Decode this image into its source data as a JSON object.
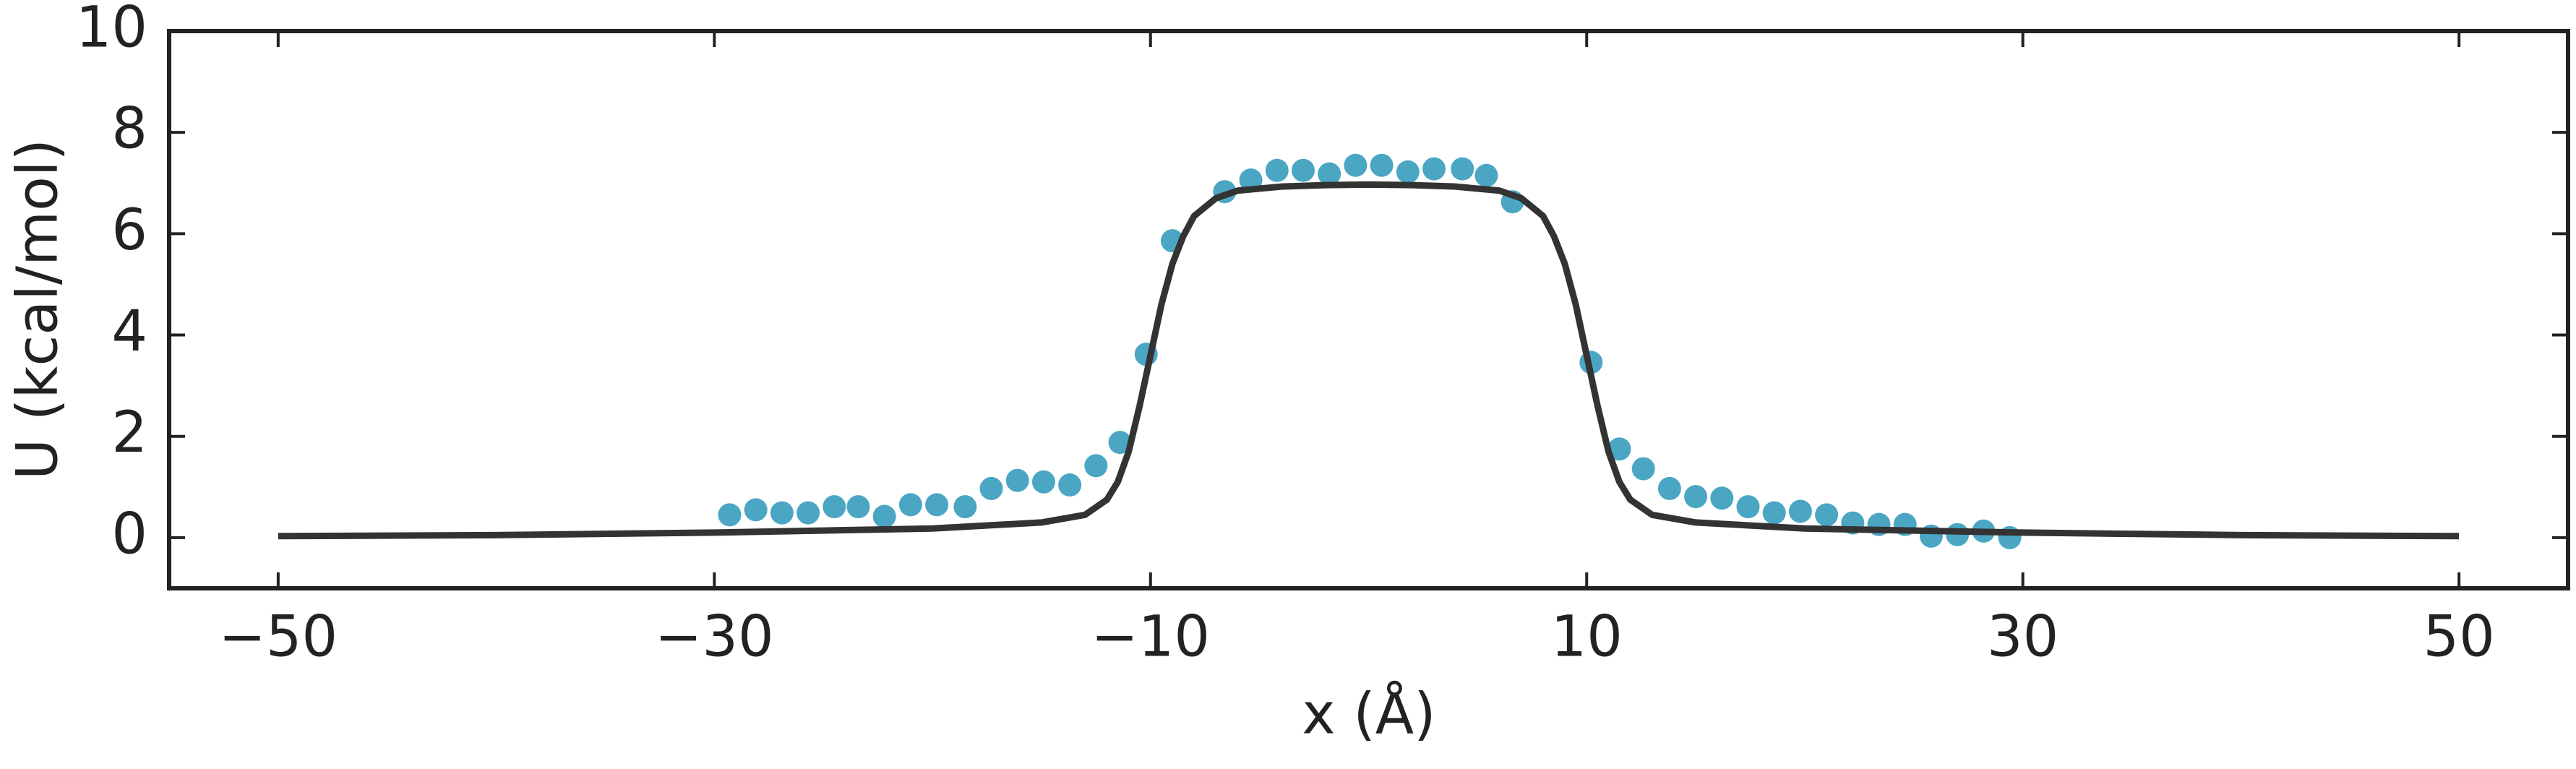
{
  "chart_data": {
    "type": "scatter",
    "xlabel": "x (Å)",
    "ylabel": "U (kcal/mol)",
    "xlim": [
      -55,
      55
    ],
    "ylim": [
      -1,
      10
    ],
    "xticks": [
      {
        "value": -50,
        "label": "−50"
      },
      {
        "value": -30,
        "label": "−30"
      },
      {
        "value": -10,
        "label": "−10"
      },
      10,
      30,
      50
    ],
    "yticks": [
      0,
      2,
      4,
      6,
      8,
      10
    ],
    "grid": false,
    "series": [
      {
        "type": "scatter",
        "color": "#4ba6c3",
        "x": [
          -29.3,
          -28.1,
          -26.9,
          -25.7,
          -24.5,
          -23.4,
          -22.2,
          -21.0,
          -19.8,
          -18.5,
          -17.3,
          -16.1,
          -14.9,
          -13.7,
          -12.5,
          -11.4,
          -10.2,
          -9.0,
          -6.6,
          -5.4,
          -4.2,
          -3.0,
          -1.8,
          -0.6,
          0.6,
          1.8,
          3.0,
          4.3,
          5.4,
          6.6,
          10.2,
          11.5,
          12.6,
          13.8,
          15.0,
          16.2,
          17.4,
          18.6,
          19.8,
          21.0,
          22.2,
          23.4,
          24.6,
          25.8,
          27.0,
          28.2,
          29.4
        ],
        "values": [
          0.45,
          0.55,
          0.49,
          0.49,
          0.61,
          0.61,
          0.42,
          0.65,
          0.65,
          0.61,
          0.97,
          1.13,
          1.1,
          1.04,
          1.42,
          1.88,
          3.62,
          5.86,
          6.83,
          7.06,
          7.25,
          7.25,
          7.18,
          7.35,
          7.35,
          7.22,
          7.28,
          7.28,
          7.15,
          6.63,
          3.46,
          1.75,
          1.36,
          0.97,
          0.81,
          0.78,
          0.61,
          0.49,
          0.52,
          0.45,
          0.29,
          0.26,
          0.26,
          0.03,
          0.06,
          0.13,
          0.0
        ]
      },
      {
        "type": "line",
        "color": "#333333",
        "x": [
          -50,
          -40,
          -30,
          -20,
          -15,
          -13,
          -12,
          -11.5,
          -11,
          -10.5,
          -10,
          -9.5,
          -9,
          -8.5,
          -8,
          -7,
          -6,
          -4,
          -2,
          0,
          2,
          4,
          6,
          7,
          8,
          8.5,
          9,
          9.5,
          10,
          10.5,
          11,
          11.5,
          12,
          13,
          15,
          20,
          30,
          40,
          50
        ],
        "values": [
          0.03,
          0.05,
          0.1,
          0.18,
          0.3,
          0.45,
          0.75,
          1.1,
          1.7,
          2.6,
          3.6,
          4.6,
          5.4,
          5.95,
          6.35,
          6.7,
          6.85,
          6.93,
          6.96,
          6.97,
          6.96,
          6.93,
          6.85,
          6.7,
          6.35,
          5.95,
          5.4,
          4.6,
          3.6,
          2.6,
          1.7,
          1.1,
          0.75,
          0.45,
          0.3,
          0.18,
          0.1,
          0.05,
          0.03
        ]
      }
    ]
  }
}
